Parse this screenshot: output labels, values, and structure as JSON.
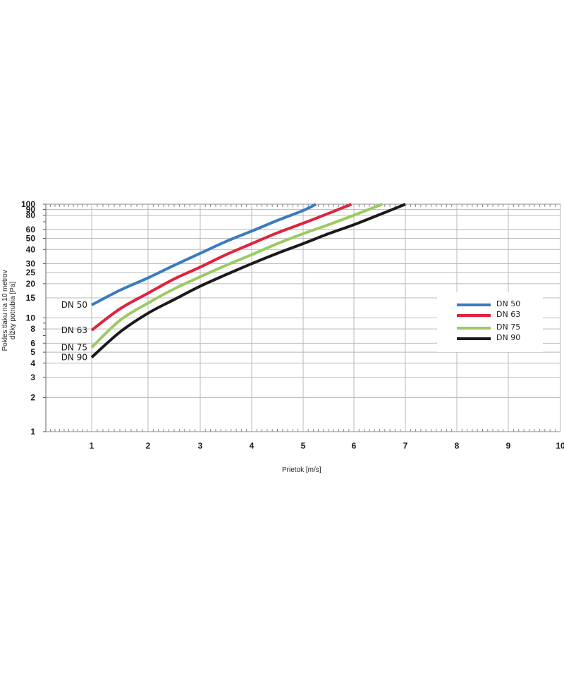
{
  "chart_data": {
    "type": "line",
    "xlabel": "Prietok [m/s]",
    "ylabel_lines": [
      "Pokles tlaku na 10 metrov",
      "dĺžky potrubia [Pa]"
    ],
    "xlim": [
      0,
      10
    ],
    "ylim": [
      1,
      100
    ],
    "yscale": "log",
    "grid": true,
    "legend_position": "right",
    "x_ticks": [
      "1",
      "2",
      "3",
      "4",
      "5",
      "6",
      "7",
      "8",
      "9",
      "10"
    ],
    "y_ticks": [
      {
        "label": "100",
        "value": 100
      },
      {
        "label": "90",
        "value": 90
      },
      {
        "label": "80",
        "value": 80
      },
      {
        "label": "60",
        "value": 60
      },
      {
        "label": "50",
        "value": 50
      },
      {
        "label": "40",
        "value": 40
      },
      {
        "label": "30",
        "value": 30
      },
      {
        "label": "25",
        "value": 25
      },
      {
        "label": "20",
        "value": 20
      },
      {
        "label": "15",
        "value": 15
      },
      {
        "label": "10",
        "value": 10
      },
      {
        "label": "8",
        "value": 8
      },
      {
        "label": "6",
        "value": 6
      },
      {
        "label": "5",
        "value": 5
      },
      {
        "label": "4",
        "value": 4
      },
      {
        "label": "3",
        "value": 3
      },
      {
        "label": "2",
        "value": 2
      },
      {
        "label": "1",
        "value": 1
      }
    ],
    "series": [
      {
        "name": "DN 50",
        "color": "#3a7bbf",
        "x": [
          1,
          1.5,
          2,
          2.5,
          3,
          3.5,
          4,
          4.5,
          5,
          5.25
        ],
        "y": [
          13,
          17.5,
          22.5,
          29,
          37,
          47,
          58,
          72,
          88,
          100
        ]
      },
      {
        "name": "DN 63",
        "color": "#e0223f",
        "x": [
          1,
          1.5,
          2,
          2.5,
          3,
          3.5,
          4,
          4.5,
          5,
          5.5,
          5.95
        ],
        "y": [
          7.8,
          12,
          16.5,
          22,
          28,
          36,
          45,
          56,
          68,
          83,
          100
        ]
      },
      {
        "name": "DN 75",
        "color": "#9acb63",
        "x": [
          1,
          1.5,
          2,
          2.5,
          3,
          3.5,
          4,
          4.5,
          5,
          5.5,
          6,
          6.55
        ],
        "y": [
          5.5,
          9.5,
          13.5,
          18,
          23,
          29,
          36,
          45,
          55,
          66,
          80,
          100
        ]
      },
      {
        "name": "DN 90",
        "color": "#1a1a1a",
        "x": [
          1,
          1.5,
          2,
          2.5,
          3,
          3.5,
          4,
          4.5,
          5,
          5.5,
          6,
          6.5,
          7
        ],
        "y": [
          4.5,
          7.5,
          11,
          14.5,
          19,
          24,
          30,
          37,
          45,
          55,
          66,
          81,
          100
        ]
      }
    ]
  }
}
